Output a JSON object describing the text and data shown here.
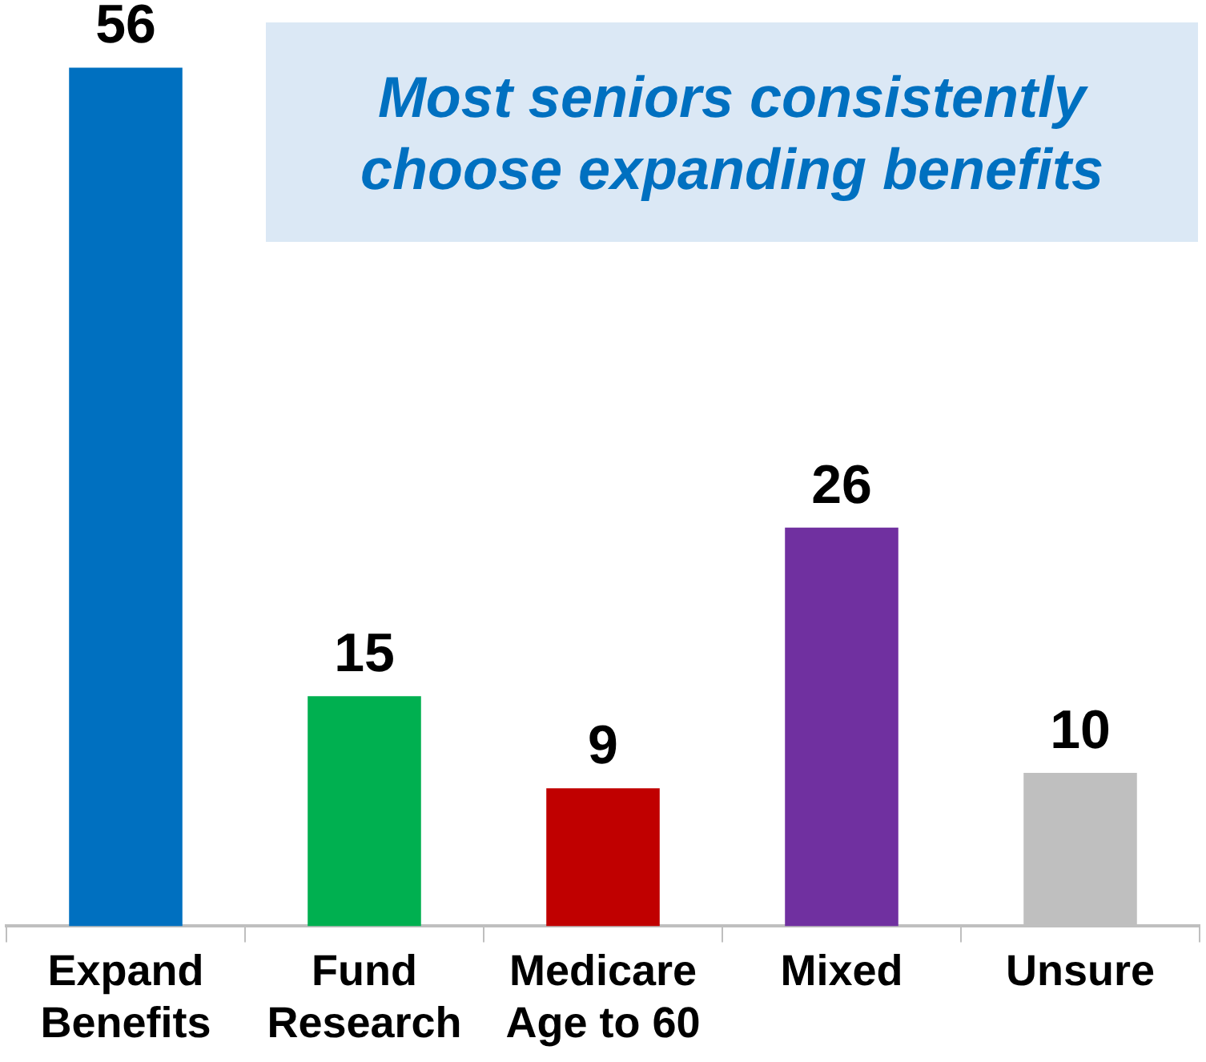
{
  "chart_data": {
    "type": "bar",
    "title": "Most seniors consistently choose expanding benefits",
    "categories": [
      "Expand Benefits",
      "Fund Research",
      "Medicare Age to 60",
      "Mixed",
      "Unsure"
    ],
    "values": [
      56,
      15,
      9,
      26,
      10
    ],
    "colors": [
      "#0070c0",
      "#00b050",
      "#c00000",
      "#7030a0",
      "#bfbfbf"
    ],
    "data_labels": true,
    "grid": false,
    "legend": false
  }
}
